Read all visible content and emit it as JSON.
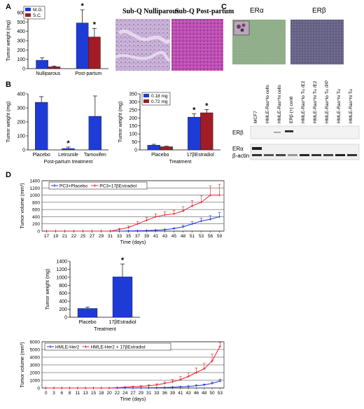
{
  "panels": {
    "A": "A",
    "B": "B",
    "C": "C",
    "D": "D"
  },
  "micrographs": {
    "nulliparous_title": "Sub-Q Nulliparous",
    "postpartum_title": "Sub-Q Post-partum",
    "er_alpha_title": "ERα",
    "er_beta_title": "ERβ",
    "colors": {
      "he_light": "#c9b3d8",
      "he_dark": "#c04fb4",
      "er_alpha": "#93b08c",
      "er_beta": "#6a6689"
    }
  },
  "blot": {
    "lanes": [
      "MCF7",
      "HMLE-Ras^lo cells",
      "HMLE-Ras^hi cells",
      "ERβ (+) contl",
      "HMLE-Ras^lo Tu /E2",
      "HMLE-Ras^hi Tu /E2",
      "HMLE-Ras^lo Tu /PP",
      "HMLE-Ras^hi Tu",
      "HMLE-Ras^hi Tu"
    ],
    "row_labels": [
      "ERβ",
      "ERα",
      "β-actin"
    ]
  },
  "chart_data": [
    {
      "id": "A1",
      "type": "bar",
      "categories": [
        "Nulliparous",
        "Post-partum"
      ],
      "series": [
        {
          "name": "M.G.",
          "color": "#1f3bd6",
          "values": [
            90,
            490
          ],
          "errors": [
            25,
            140
          ]
        },
        {
          "name": "S.C.",
          "color": "#a01c26",
          "values": [
            20,
            340
          ],
          "errors": [
            8,
            90
          ]
        }
      ],
      "ylabel": "Tumor weight (mg)",
      "xlabel": "",
      "ylim": [
        0,
        600
      ],
      "yticks": [
        0,
        100,
        200,
        300,
        400,
        500,
        600
      ],
      "significance": [
        "*",
        "*"
      ],
      "legend": "top-left"
    },
    {
      "id": "B1",
      "type": "bar",
      "categories": [
        "Placebo",
        "Letrozole",
        "Tamoxifen"
      ],
      "series": [
        {
          "name": "",
          "color": "#1f3bd6",
          "values": [
            340,
            10,
            240
          ],
          "errors": [
            40,
            10,
            145
          ]
        }
      ],
      "ylabel": "Tumor weight (mg)",
      "xlabel": "Post-partum treatment",
      "ylim": [
        0,
        400
      ],
      "yticks": [
        0,
        100,
        200,
        300,
        400
      ],
      "significance": [
        "*"
      ]
    },
    {
      "id": "B2",
      "type": "bar",
      "categories": [
        "Placebo",
        "17βEstradiol"
      ],
      "series": [
        {
          "name": "0.18 mg",
          "color": "#1f3bd6",
          "values": [
            30,
            205
          ],
          "errors": [
            5,
            20
          ]
        },
        {
          "name": "0.72 mg",
          "color": "#a01c26",
          "values": [
            20,
            232
          ],
          "errors": [
            3,
            20
          ]
        }
      ],
      "ylabel": "Tumor weight (mg)",
      "xlabel": "Treatment",
      "ylim": [
        0,
        350
      ],
      "yticks": [
        0,
        50,
        100,
        150,
        200,
        250,
        300,
        350
      ],
      "significance": [
        "*",
        "*"
      ],
      "legend": "top-left"
    },
    {
      "id": "D1",
      "type": "line",
      "x": [
        17,
        19,
        21,
        22,
        25,
        27,
        29,
        31,
        33,
        35,
        37,
        39,
        41,
        43,
        45,
        48,
        51,
        53,
        56,
        59
      ],
      "series": [
        {
          "name": "PC3+Placebo",
          "color": "#1f3bd6",
          "values": [
            0,
            0,
            0,
            0,
            0,
            0,
            0,
            0,
            0,
            5,
            10,
            15,
            25,
            40,
            70,
            120,
            200,
            280,
            330,
            400
          ],
          "errors": [
            0,
            0,
            0,
            0,
            0,
            0,
            0,
            0,
            0,
            5,
            5,
            8,
            10,
            15,
            20,
            40,
            60,
            80,
            100,
            120
          ]
        },
        {
          "name": "PC3+17βEstradiol",
          "color": "#e8222b",
          "values": [
            0,
            0,
            0,
            0,
            0,
            0,
            0,
            0,
            50,
            100,
            200,
            300,
            400,
            450,
            480,
            560,
            700,
            800,
            1000,
            1000
          ],
          "errors": [
            0,
            0,
            0,
            0,
            0,
            0,
            0,
            0,
            20,
            40,
            60,
            80,
            80,
            90,
            100,
            120,
            150,
            180,
            250,
            300
          ]
        }
      ],
      "ylabel": "Tumor volume (mm³)",
      "xlabel": "Time (days)",
      "ylim": [
        0,
        1400
      ],
      "yticks": [
        0,
        200,
        400,
        600,
        800,
        1000,
        1200,
        1400
      ],
      "xtick_labels": [
        "17",
        "19",
        "21",
        "22",
        "25",
        "27",
        "29",
        "31",
        "33",
        "35",
        "37",
        "39",
        "41",
        "43",
        "45",
        "48",
        "51",
        "53",
        "56",
        "59"
      ],
      "legend": "top-left"
    },
    {
      "id": "D2",
      "type": "bar",
      "categories": [
        "Placebo",
        "17βEstradiol"
      ],
      "series": [
        {
          "name": "",
          "color": "#1f3bd6",
          "values": [
            220,
            1010
          ],
          "errors": [
            30,
            320
          ]
        }
      ],
      "ylabel": "Tumor weight (mg)",
      "xlabel": "Treatment",
      "ylim": [
        0,
        1400
      ],
      "yticks": [
        0,
        200,
        400,
        600,
        800,
        1000,
        1200,
        1400
      ],
      "significance": [
        "*"
      ]
    },
    {
      "id": "D3",
      "type": "line",
      "x": [
        0,
        3,
        6,
        8,
        11,
        13,
        15,
        18,
        20,
        22,
        24,
        27,
        29,
        31,
        33,
        36,
        39,
        41,
        43,
        46,
        48,
        50,
        53
      ],
      "series": [
        {
          "name": "HMLE-Her2",
          "color": "#1f3bd6",
          "values": [
            0,
            0,
            0,
            0,
            0,
            0,
            0,
            0,
            0,
            0,
            0,
            0,
            10,
            20,
            40,
            60,
            100,
            150,
            200,
            300,
            400,
            600,
            900
          ],
          "errors": [
            0,
            0,
            0,
            0,
            0,
            0,
            0,
            0,
            0,
            0,
            0,
            0,
            5,
            10,
            15,
            20,
            30,
            40,
            50,
            80,
            120,
            180,
            250
          ]
        },
        {
          "name": "HMLE-Her2 + 17βEstradiol",
          "color": "#e8222b",
          "values": [
            0,
            0,
            0,
            0,
            0,
            0,
            0,
            0,
            0,
            50,
            100,
            150,
            200,
            300,
            400,
            600,
            800,
            1100,
            1500,
            2000,
            2500,
            3500,
            5400
          ],
          "errors": [
            0,
            0,
            0,
            0,
            0,
            0,
            0,
            0,
            0,
            30,
            50,
            60,
            80,
            100,
            150,
            200,
            300,
            400,
            500,
            600,
            700,
            900,
            500
          ]
        }
      ],
      "ylabel": "Tumor volume (mm³)",
      "xlabel": "Time (days)",
      "ylim": [
        0,
        6000
      ],
      "yticks": [
        0,
        1000,
        2000,
        3000,
        4000,
        5000,
        6000
      ],
      "xtick_labels": [
        "0",
        "3",
        "6",
        "8",
        "11",
        "13",
        "15",
        "18",
        "20",
        "22",
        "24",
        "27",
        "29",
        "31",
        "33",
        "36",
        "39",
        "41",
        "43",
        "46",
        "48",
        "50",
        "53"
      ],
      "legend": "top-left"
    }
  ]
}
